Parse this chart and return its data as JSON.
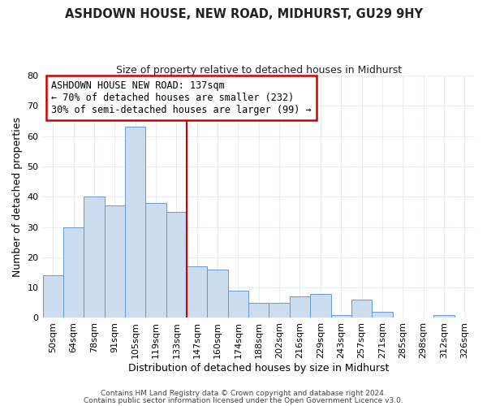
{
  "title": "ASHDOWN HOUSE, NEW ROAD, MIDHURST, GU29 9HY",
  "subtitle": "Size of property relative to detached houses in Midhurst",
  "xlabel": "Distribution of detached houses by size in Midhurst",
  "ylabel": "Number of detached properties",
  "bar_labels": [
    "50sqm",
    "64sqm",
    "78sqm",
    "91sqm",
    "105sqm",
    "119sqm",
    "133sqm",
    "147sqm",
    "160sqm",
    "174sqm",
    "188sqm",
    "202sqm",
    "216sqm",
    "229sqm",
    "243sqm",
    "257sqm",
    "271sqm",
    "285sqm",
    "298sqm",
    "312sqm",
    "326sqm"
  ],
  "bar_heights": [
    14,
    30,
    40,
    37,
    63,
    38,
    35,
    17,
    16,
    9,
    5,
    5,
    7,
    8,
    1,
    6,
    2,
    0,
    0,
    1,
    0
  ],
  "bar_color": "#ccddf0",
  "bar_edge_color": "#6699cc",
  "vline_color": "#cc0000",
  "annotation_line1": "ASHDOWN HOUSE NEW ROAD: 137sqm",
  "annotation_line2": "← 70% of detached houses are smaller (232)",
  "annotation_line3": "30% of semi-detached houses are larger (99) →",
  "annotation_box_color": "#cc0000",
  "ylim": [
    0,
    80
  ],
  "yticks": [
    0,
    10,
    20,
    30,
    40,
    50,
    60,
    70,
    80
  ],
  "footer_line1": "Contains HM Land Registry data © Crown copyright and database right 2024.",
  "footer_line2": "Contains public sector information licensed under the Open Government Licence v3.0.",
  "background_color": "#ffffff",
  "plot_background": "#ffffff",
  "grid_color": "#e8eef8",
  "title_fontsize": 10.5,
  "subtitle_fontsize": 9,
  "axis_label_fontsize": 9,
  "tick_fontsize": 8,
  "annotation_fontsize": 8.5,
  "footer_fontsize": 6.5
}
